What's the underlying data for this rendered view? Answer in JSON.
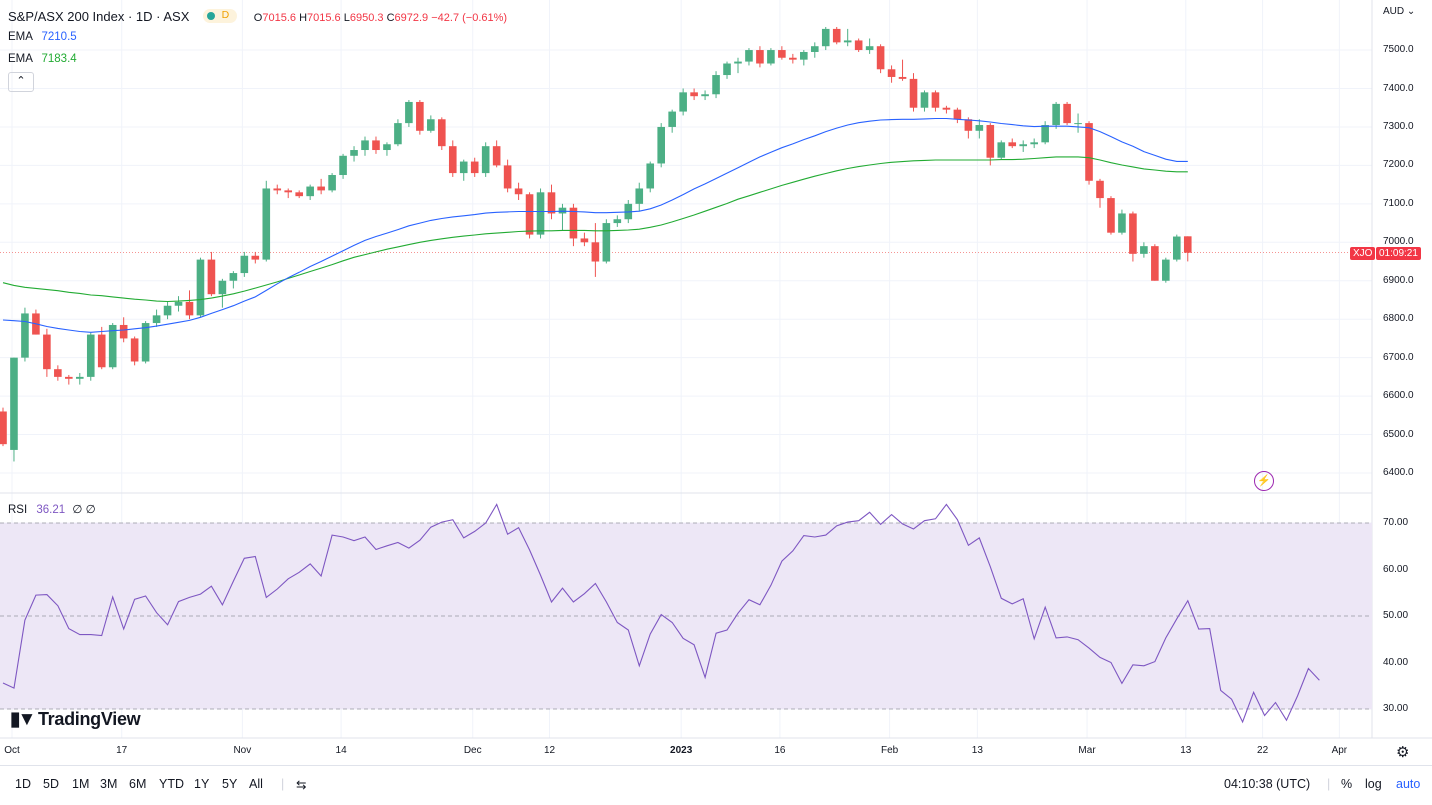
{
  "header": {
    "title": "S&P/ASX 200 Index · 1D · ASX",
    "timeframe_badge": "D",
    "ohlc": {
      "o_label": "O",
      "o": "7015.6",
      "h_label": "H",
      "h": "7015.6",
      "l_label": "L",
      "l": "6950.3",
      "c_label": "C",
      "c": "6972.9",
      "change": "−42.7 (−0.61%)"
    },
    "ema1": {
      "label": "EMA",
      "value": "7210.5",
      "color": "#2962ff"
    },
    "ema2": {
      "label": "EMA",
      "value": "7183.4",
      "color": "#22ab33"
    },
    "collapse_icon": "chevron-up-icon",
    "currency": "AUD"
  },
  "rsi_legend": {
    "label": "RSI",
    "value": "36.21",
    "extra": "∅ ∅"
  },
  "price_badge": {
    "symbol": "XJO",
    "countdown": "01:09:21"
  },
  "watermark": "TradingView",
  "toolbar": {
    "ranges": [
      "1D",
      "5D",
      "1M",
      "3M",
      "6M",
      "YTD",
      "1Y",
      "5Y",
      "All"
    ],
    "time": "04:10:38 (UTC)",
    "percent": "%",
    "log": "log",
    "auto": "auto"
  },
  "colors": {
    "up": "#26a69a",
    "up_fill": "#4caf85",
    "down": "#ef5350",
    "ema_fast": "#2962ff",
    "ema_slow": "#22ab33",
    "rsi": "#7e57c2",
    "rsi_band": "#ede7f6"
  },
  "chart_data": [
    {
      "type": "candlestick",
      "title": "S&P/ASX 200 Index · 1D · ASX",
      "ylabel": "AUD",
      "ylim": [
        6350,
        7620
      ],
      "y_ticks": [
        "6400.0",
        "6500.0",
        "6600.0",
        "6700.0",
        "6800.0",
        "6900.0",
        "7000.0",
        "7100.0",
        "7200.0",
        "7300.0",
        "7400.0",
        "7500.0"
      ],
      "x_ticks": [
        "Oct",
        "17",
        "Nov",
        "14",
        "Dec",
        "12",
        "2023",
        "16",
        "Feb",
        "13",
        "Mar",
        "13",
        "22",
        "Apr"
      ],
      "ohlc": [
        [
          6560,
          6570,
          6470,
          6475
        ],
        [
          6460,
          6700,
          6430,
          6700
        ],
        [
          6700,
          6830,
          6690,
          6815
        ],
        [
          6815,
          6825,
          6760,
          6760
        ],
        [
          6760,
          6775,
          6650,
          6670
        ],
        [
          6670,
          6680,
          6640,
          6650
        ],
        [
          6650,
          6655,
          6630,
          6645
        ],
        [
          6645,
          6660,
          6630,
          6650
        ],
        [
          6650,
          6765,
          6640,
          6760
        ],
        [
          6760,
          6780,
          6670,
          6675
        ],
        [
          6675,
          6790,
          6670,
          6785
        ],
        [
          6785,
          6805,
          6740,
          6750
        ],
        [
          6750,
          6755,
          6680,
          6690
        ],
        [
          6690,
          6795,
          6685,
          6790
        ],
        [
          6790,
          6825,
          6780,
          6810
        ],
        [
          6810,
          6845,
          6800,
          6835
        ],
        [
          6835,
          6860,
          6820,
          6845
        ],
        [
          6845,
          6875,
          6800,
          6810
        ],
        [
          6810,
          6960,
          6805,
          6955
        ],
        [
          6955,
          6975,
          6860,
          6865
        ],
        [
          6865,
          6905,
          6830,
          6900
        ],
        [
          6900,
          6925,
          6880,
          6920
        ],
        [
          6920,
          6975,
          6910,
          6965
        ],
        [
          6965,
          6975,
          6945,
          6955
        ],
        [
          6955,
          7160,
          6950,
          7140
        ],
        [
          7140,
          7150,
          7125,
          7135
        ],
        [
          7135,
          7140,
          7115,
          7130
        ],
        [
          7130,
          7135,
          7115,
          7120
        ],
        [
          7120,
          7150,
          7110,
          7145
        ],
        [
          7145,
          7165,
          7125,
          7135
        ],
        [
          7135,
          7180,
          7130,
          7175
        ],
        [
          7175,
          7230,
          7165,
          7225
        ],
        [
          7225,
          7250,
          7210,
          7240
        ],
        [
          7240,
          7275,
          7225,
          7265
        ],
        [
          7265,
          7275,
          7230,
          7240
        ],
        [
          7240,
          7260,
          7225,
          7255
        ],
        [
          7255,
          7320,
          7250,
          7310
        ],
        [
          7310,
          7370,
          7300,
          7365
        ],
        [
          7365,
          7370,
          7280,
          7290
        ],
        [
          7290,
          7330,
          7285,
          7320
        ],
        [
          7320,
          7325,
          7240,
          7250
        ],
        [
          7250,
          7265,
          7170,
          7180
        ],
        [
          7180,
          7215,
          7160,
          7210
        ],
        [
          7210,
          7220,
          7170,
          7180
        ],
        [
          7180,
          7260,
          7170,
          7250
        ],
        [
          7250,
          7265,
          7195,
          7200
        ],
        [
          7200,
          7215,
          7130,
          7140
        ],
        [
          7140,
          7155,
          7110,
          7125
        ],
        [
          7125,
          7130,
          7010,
          7020
        ],
        [
          7020,
          7140,
          7010,
          7130
        ],
        [
          7130,
          7150,
          7060,
          7075
        ],
        [
          7075,
          7100,
          7030,
          7090
        ],
        [
          7090,
          7100,
          6990,
          7010
        ],
        [
          7010,
          7025,
          6990,
          7000
        ],
        [
          7000,
          7050,
          6910,
          6950
        ],
        [
          6950,
          7060,
          6945,
          7050
        ],
        [
          7050,
          7070,
          7040,
          7060
        ],
        [
          7060,
          7110,
          7050,
          7100
        ],
        [
          7100,
          7155,
          7080,
          7140
        ],
        [
          7140,
          7210,
          7130,
          7205
        ],
        [
          7205,
          7310,
          7195,
          7300
        ],
        [
          7300,
          7345,
          7285,
          7340
        ],
        [
          7340,
          7400,
          7330,
          7390
        ],
        [
          7390,
          7400,
          7370,
          7380
        ],
        [
          7380,
          7395,
          7370,
          7385
        ],
        [
          7385,
          7445,
          7375,
          7435
        ],
        [
          7435,
          7470,
          7425,
          7465
        ],
        [
          7465,
          7480,
          7440,
          7470
        ],
        [
          7470,
          7505,
          7460,
          7500
        ],
        [
          7500,
          7510,
          7455,
          7465
        ],
        [
          7465,
          7505,
          7460,
          7500
        ],
        [
          7500,
          7510,
          7475,
          7480
        ],
        [
          7480,
          7490,
          7465,
          7475
        ],
        [
          7475,
          7500,
          7460,
          7495
        ],
        [
          7495,
          7520,
          7480,
          7510
        ],
        [
          7510,
          7560,
          7500,
          7555
        ],
        [
          7555,
          7560,
          7515,
          7520
        ],
        [
          7520,
          7555,
          7510,
          7525
        ],
        [
          7525,
          7530,
          7495,
          7500
        ],
        [
          7500,
          7530,
          7490,
          7510
        ],
        [
          7510,
          7515,
          7440,
          7450
        ],
        [
          7450,
          7460,
          7415,
          7430
        ],
        [
          7430,
          7475,
          7420,
          7425
        ],
        [
          7425,
          7440,
          7340,
          7350
        ],
        [
          7350,
          7395,
          7340,
          7390
        ],
        [
          7390,
          7395,
          7340,
          7350
        ],
        [
          7350,
          7355,
          7335,
          7345
        ],
        [
          7345,
          7350,
          7310,
          7320
        ],
        [
          7320,
          7325,
          7270,
          7290
        ],
        [
          7290,
          7320,
          7270,
          7305
        ],
        [
          7305,
          7310,
          7200,
          7220
        ],
        [
          7220,
          7265,
          7215,
          7260
        ],
        [
          7260,
          7270,
          7245,
          7250
        ],
        [
          7250,
          7265,
          7235,
          7255
        ],
        [
          7255,
          7270,
          7245,
          7260
        ],
        [
          7260,
          7315,
          7255,
          7305
        ],
        [
          7305,
          7365,
          7295,
          7360
        ],
        [
          7360,
          7365,
          7305,
          7310
        ],
        [
          7310,
          7335,
          7285,
          7310
        ],
        [
          7310,
          7315,
          7150,
          7160
        ],
        [
          7160,
          7165,
          7090,
          7115
        ],
        [
          7115,
          7120,
          7020,
          7025
        ],
        [
          7025,
          7085,
          7020,
          7075
        ],
        [
          7075,
          7080,
          6950,
          6970
        ],
        [
          6970,
          7000,
          6960,
          6990
        ],
        [
          6990,
          6995,
          6900,
          6900
        ],
        [
          6900,
          6960,
          6895,
          6955
        ],
        [
          6955,
          7020,
          6950,
          7015
        ],
        [
          7015.6,
          7015.6,
          6950.3,
          6972.9
        ]
      ],
      "ema_fast": {
        "label": "EMA",
        "last": 7210.5,
        "values": [
          6798,
          6796,
          6794,
          6788,
          6781,
          6776,
          6772,
          6768,
          6766,
          6768,
          6770,
          6772,
          6775,
          6778,
          6782,
          6787,
          6792,
          6797,
          6805,
          6815,
          6825,
          6835,
          6847,
          6858,
          6875,
          6892,
          6908,
          6922,
          6937,
          6950,
          6964,
          6978,
          6992,
          7005,
          7015,
          7024,
          7033,
          7043,
          7050,
          7057,
          7062,
          7066,
          7069,
          7072,
          7076,
          7078,
          7079,
          7080,
          7080,
          7080,
          7080,
          7081,
          7080,
          7079,
          7077,
          7077,
          7078,
          7079,
          7081,
          7087,
          7097,
          7110,
          7124,
          7139,
          7152,
          7166,
          7180,
          7194,
          7208,
          7222,
          7234,
          7246,
          7256,
          7267,
          7277,
          7288,
          7297,
          7305,
          7311,
          7315,
          7318,
          7319,
          7320,
          7320,
          7321,
          7322,
          7322,
          7320,
          7318,
          7316,
          7313,
          7309,
          7306,
          7303,
          7301,
          7302,
          7302,
          7302,
          7300,
          7298,
          7288,
          7275,
          7261,
          7250,
          7236,
          7226,
          7216,
          7210.5,
          7210.5
        ]
      },
      "ema_slow": {
        "label": "EMA",
        "last": 7183.4,
        "values": [
          6895,
          6888,
          6883,
          6880,
          6877,
          6874,
          6870,
          6867,
          6863,
          6861,
          6858,
          6855,
          6852,
          6850,
          6847,
          6846,
          6847,
          6849,
          6851,
          6855,
          6860,
          6866,
          6873,
          6881,
          6889,
          6897,
          6906,
          6915,
          6924,
          6933,
          6942,
          6952,
          6961,
          6968,
          6975,
          6982,
          6988,
          6994,
          7000,
          7005,
          7009,
          7013,
          7016,
          7019,
          7022,
          7024,
          7026,
          7028,
          7029,
          7030,
          7030,
          7031,
          7031,
          7031,
          7030,
          7030,
          7031,
          7032,
          7034,
          7039,
          7045,
          7053,
          7062,
          7071,
          7081,
          7091,
          7101,
          7112,
          7121,
          7130,
          7139,
          7148,
          7156,
          7164,
          7172,
          7179,
          7186,
          7192,
          7197,
          7201,
          7205,
          7208,
          7210,
          7212,
          7213,
          7214,
          7214,
          7214,
          7214,
          7214,
          7214,
          7215,
          7215,
          7216,
          7218,
          7220,
          7222,
          7222,
          7222,
          7220,
          7214,
          7207,
          7201,
          7196,
          7191,
          7188,
          7185,
          7183.4,
          7183.4
        ]
      }
    },
    {
      "type": "line",
      "title": "RSI",
      "ylim": [
        25,
        77
      ],
      "y_ticks": [
        "30.00",
        "40.00",
        "50.00",
        "60.00",
        "70.00"
      ],
      "band": [
        30,
        70
      ],
      "values": [
        35.6,
        34.5,
        49.1,
        54.5,
        54.6,
        52.2,
        47.3,
        46.0,
        46.0,
        45.8,
        54.1,
        47.2,
        53.6,
        54.3,
        50.7,
        48.1,
        53.1,
        54.0,
        54.7,
        56.4,
        52.4,
        57.5,
        62.4,
        62.8,
        54.0,
        55.8,
        58.0,
        59.4,
        61.2,
        58.6,
        67.4,
        67.0,
        66.2,
        67.0,
        64.3,
        65.1,
        65.8,
        64.6,
        66.3,
        69.1,
        70.2,
        70.7,
        66.8,
        68.2,
        70.0,
        74.0,
        67.6,
        69.0,
        64.2,
        58.8,
        53.0,
        56.0,
        53.0,
        54.8,
        57.0,
        53.0,
        48.6,
        47.0,
        39.3,
        46.1,
        50.3,
        48.6,
        45.2,
        43.8,
        36.8,
        46.3,
        47.0,
        50.6,
        53.5,
        52.4,
        56.6,
        61.8,
        64.0,
        67.3,
        67.0,
        67.4,
        69.4,
        70.2,
        70.5,
        72.3,
        69.7,
        71.8,
        69.8,
        68.7,
        70.5,
        70.9,
        74.0,
        70.7,
        65.2,
        66.8,
        60.6,
        53.8,
        52.6,
        53.7,
        45.1,
        51.9,
        45.3,
        45.5,
        44.9,
        43.1,
        41.1,
        40.0,
        35.5,
        39.5,
        39.3,
        40.2,
        45.3,
        49.4,
        53.3,
        47.2,
        47.3,
        34.0,
        32.1,
        27.2,
        33.6,
        28.6,
        31.4,
        27.6,
        32.8,
        38.7,
        36.2
      ]
    }
  ]
}
